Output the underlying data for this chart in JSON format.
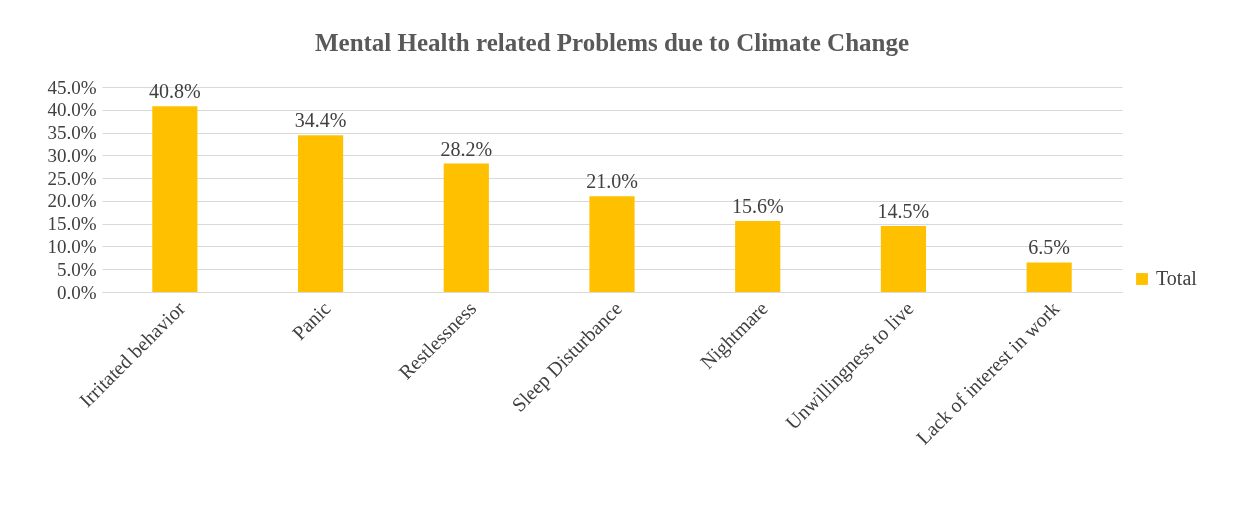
{
  "chart_data": {
    "type": "bar",
    "title": "Mental Health related Problems due to Climate Change",
    "categories": [
      "Irritated behavior",
      "Panic",
      "Restlessness",
      "Sleep Disturbance",
      "Nightmare",
      "Unwillingness to live",
      "Lack of interest in work"
    ],
    "series": [
      {
        "name": "Total",
        "color": "#ffc000",
        "values": [
          40.8,
          34.4,
          28.2,
          21.0,
          15.6,
          14.5,
          6.5
        ],
        "value_labels": [
          "40.8%",
          "34.4%",
          "28.2%",
          "21.0%",
          "15.6%",
          "14.5%",
          "6.5%"
        ]
      }
    ],
    "ylim": [
      0,
      45
    ],
    "yticks": [
      {
        "value": 0,
        "label": "0.0%"
      },
      {
        "value": 5,
        "label": "5.0%"
      },
      {
        "value": 10,
        "label": "10.0%"
      },
      {
        "value": 15,
        "label": "15.0%"
      },
      {
        "value": 20,
        "label": "20.0%"
      },
      {
        "value": 25,
        "label": "25.0%"
      },
      {
        "value": 30,
        "label": "30.0%"
      },
      {
        "value": 35,
        "label": "35.0%"
      },
      {
        "value": 40,
        "label": "40.0%"
      },
      {
        "value": 45,
        "label": "45.0%"
      }
    ],
    "grid": "y",
    "legend": "right"
  }
}
